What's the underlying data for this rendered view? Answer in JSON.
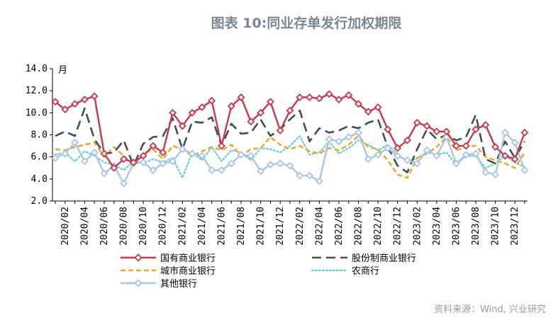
{
  "title": "图表 10:同业存单发行加权期限",
  "source": "资料来源：Wind, 兴业研究",
  "chart_data": {
    "type": "line",
    "unit": "月",
    "ylim": [
      2.0,
      14.0
    ],
    "yticks": [
      "14.0",
      "12.0",
      "10.0",
      "8.0",
      "6.0",
      "4.0",
      "2.0"
    ],
    "ytick_values": [
      14,
      12,
      10,
      8,
      6,
      4,
      2
    ],
    "xtick_labels": [
      "2020/02",
      "2020/04",
      "2020/06",
      "2020/08",
      "2020/10",
      "2020/12",
      "2021/02",
      "2021/04",
      "2021/06",
      "2021/08",
      "2021/10",
      "2021/12",
      "2022/02",
      "2022/04",
      "2022/06",
      "2022/08",
      "2022/10",
      "2022/12",
      "2023/02",
      "2023/04",
      "2023/06",
      "2023/08",
      "2023/10",
      "2023/12"
    ],
    "x": [
      "2020/01",
      "2020/02",
      "2020/03",
      "2020/04",
      "2020/05",
      "2020/06",
      "2020/07",
      "2020/08",
      "2020/09",
      "2020/10",
      "2020/11",
      "2020/12",
      "2021/01",
      "2021/02",
      "2021/03",
      "2021/04",
      "2021/05",
      "2021/06",
      "2021/07",
      "2021/08",
      "2021/09",
      "2021/10",
      "2021/11",
      "2021/12",
      "2022/01",
      "2022/02",
      "2022/03",
      "2022/04",
      "2022/05",
      "2022/06",
      "2022/07",
      "2022/08",
      "2022/09",
      "2022/10",
      "2022/11",
      "2022/12",
      "2023/01",
      "2023/02",
      "2023/03",
      "2023/04",
      "2023/05",
      "2023/06",
      "2023/07",
      "2023/08",
      "2023/09",
      "2023/10",
      "2023/11",
      "2023/12",
      "2024/01"
    ],
    "series": [
      {
        "name": "国有商业银行",
        "color": "#c8374a",
        "style": "solid-diamond",
        "values": [
          11.0,
          10.3,
          10.8,
          11.2,
          11.5,
          6.3,
          5.0,
          5.8,
          5.5,
          6.1,
          7.0,
          6.4,
          10.0,
          8.8,
          10.0,
          10.5,
          11.1,
          7.0,
          10.6,
          11.4,
          9.2,
          10.0,
          11.0,
          8.4,
          10.2,
          11.4,
          11.4,
          11.3,
          11.7,
          11.2,
          11.6,
          10.8,
          10.1,
          10.5,
          8.5,
          6.8,
          7.5,
          9.1,
          8.8,
          8.3,
          8.3,
          7.0,
          7.0,
          8.5,
          8.9,
          6.9,
          6.1,
          5.8,
          8.2
        ]
      },
      {
        "name": "股份制商业银行",
        "color": "#3e4f61",
        "style": "long-dash",
        "values": [
          7.9,
          8.3,
          7.9,
          10.4,
          7.6,
          6.3,
          6.4,
          7.5,
          5.2,
          7.2,
          7.8,
          7.9,
          9.5,
          6.7,
          9.2,
          9.1,
          9.6,
          7.0,
          9.0,
          8.1,
          8.2,
          9.4,
          7.9,
          8.5,
          9.4,
          10.2,
          7.4,
          8.6,
          8.2,
          8.4,
          8.8,
          8.6,
          9.1,
          9.4,
          6.9,
          5.2,
          4.6,
          6.7,
          8.5,
          7.6,
          8.0,
          7.5,
          7.8,
          9.8,
          5.8,
          5.4,
          7.4,
          5.9,
          7.4
        ]
      },
      {
        "name": "城市商业银行",
        "color": "#eba82f",
        "style": "short-dash",
        "values": [
          6.7,
          6.6,
          6.9,
          7.1,
          7.3,
          6.0,
          6.9,
          6.1,
          5.2,
          6.3,
          6.7,
          5.8,
          7.0,
          6.7,
          6.1,
          6.5,
          6.9,
          6.6,
          7.1,
          6.1,
          6.7,
          6.8,
          7.8,
          7.1,
          6.7,
          7.0,
          6.5,
          6.3,
          6.8,
          6.6,
          7.1,
          7.9,
          6.9,
          6.7,
          5.7,
          4.4,
          4.1,
          5.9,
          6.3,
          6.9,
          7.8,
          6.6,
          6.9,
          7.0,
          6.0,
          5.7,
          5.4,
          5.0,
          6.4
        ]
      },
      {
        "name": "农商行",
        "color": "#5fd0d4",
        "style": "dotted",
        "values": [
          6.2,
          6.4,
          5.6,
          6.5,
          6.1,
          5.5,
          5.3,
          4.8,
          5.6,
          5.4,
          5.8,
          5.5,
          5.9,
          4.1,
          6.4,
          5.7,
          6.9,
          5.6,
          6.6,
          6.4,
          5.7,
          6.8,
          6.7,
          6.4,
          7.0,
          7.9,
          6.2,
          6.4,
          7.4,
          6.3,
          6.8,
          7.5,
          7.1,
          6.6,
          7.1,
          6.3,
          5.5,
          5.9,
          6.4,
          6.2,
          6.4,
          5.3,
          6.1,
          6.1,
          5.0,
          5.4,
          6.1,
          5.5,
          5.1
        ]
      },
      {
        "name": "其他银行",
        "color": "#a7c6e3",
        "style": "solid-diamond",
        "values": [
          5.9,
          6.3,
          7.3,
          5.6,
          6.4,
          4.5,
          5.2,
          3.6,
          5.4,
          5.5,
          4.8,
          5.4,
          5.6,
          6.7,
          6.3,
          6.1,
          4.8,
          4.8,
          5.4,
          6.2,
          6.1,
          4.7,
          5.3,
          5.4,
          5.2,
          4.3,
          4.3,
          3.8,
          7.6,
          7.4,
          7.8,
          8.2,
          5.8,
          6.2,
          6.8,
          6.1,
          5.7,
          5.4,
          6.6,
          6.1,
          7.8,
          5.4,
          6.2,
          6.3,
          4.6,
          4.4,
          8.2,
          7.3,
          4.8
        ]
      }
    ],
    "legend": {
      "placement": "bottom",
      "columns": 2
    }
  }
}
